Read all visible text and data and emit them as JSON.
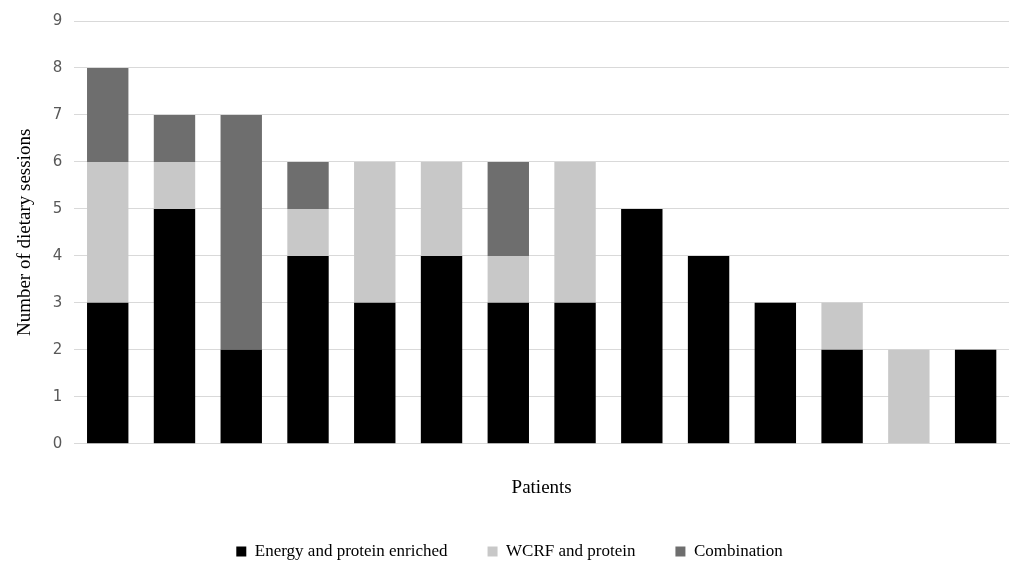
{
  "chart_data": {
    "type": "bar",
    "stacked": true,
    "xlabel": "Patients",
    "ylabel": "Number of dietary sessions",
    "categories": [
      null,
      null,
      null,
      null,
      null,
      null,
      null,
      null,
      null,
      null,
      null,
      null,
      null,
      null
    ],
    "series": [
      {
        "name": "Energy and protein enriched",
        "color": "#000000",
        "values": [
          3,
          5,
          2,
          4,
          3,
          4,
          3,
          3,
          5,
          4,
          3,
          2,
          0,
          2
        ]
      },
      {
        "name": "WCRF and protein",
        "color": "#c8c8c8",
        "values": [
          3,
          1,
          0,
          1,
          3,
          2,
          1,
          3,
          0,
          0,
          0,
          1,
          2,
          0
        ]
      },
      {
        "name": "Combination",
        "color": "#6e6e6e",
        "values": [
          2,
          1,
          5,
          1,
          0,
          0,
          2,
          0,
          0,
          0,
          0,
          0,
          0,
          0
        ]
      }
    ],
    "ylim": [
      0,
      9
    ],
    "yticks": [
      0,
      1,
      2,
      3,
      4,
      5,
      6,
      7,
      8,
      9
    ],
    "grid": "y",
    "legend": "bottom"
  }
}
